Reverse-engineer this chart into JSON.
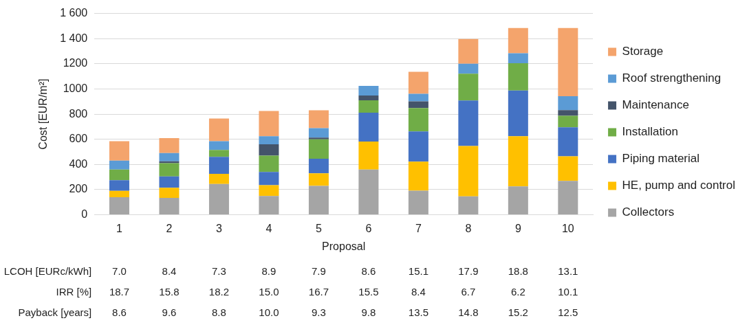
{
  "chart_data": {
    "type": "bar",
    "stacked": true,
    "xlabel": "Proposal",
    "ylabel": "Cost [EUR/m²]",
    "categories": [
      "1",
      "2",
      "3",
      "4",
      "5",
      "6",
      "7",
      "8",
      "9",
      "10"
    ],
    "series": [
      {
        "name": "Collectors",
        "color": "#a5a5a5",
        "values": [
          140,
          135,
          245,
          150,
          230,
          360,
          192,
          146,
          226,
          270
        ]
      },
      {
        "name": "HE, pump and control",
        "color": "#ffc000",
        "values": [
          50,
          80,
          80,
          85,
          100,
          222,
          230,
          400,
          398,
          195
        ]
      },
      {
        "name": "Piping material",
        "color": "#4472c4",
        "values": [
          85,
          90,
          135,
          105,
          115,
          230,
          240,
          363,
          364,
          230
        ]
      },
      {
        "name": "Installation",
        "color": "#70ad47",
        "values": [
          85,
          105,
          55,
          130,
          155,
          98,
          187,
          213,
          216,
          92
        ]
      },
      {
        "name": "Maintenance",
        "color": "#44546a",
        "values": [
          0,
          15,
          0,
          90,
          13,
          38,
          53,
          0,
          0,
          45
        ]
      },
      {
        "name": "Roof strengthening",
        "color": "#5b9bd5",
        "values": [
          70,
          65,
          70,
          65,
          75,
          77,
          59,
          79,
          80,
          111
        ]
      },
      {
        "name": "Storage",
        "color": "#f4a46c",
        "values": [
          155,
          120,
          180,
          200,
          142,
          0,
          175,
          196,
          200,
          541
        ]
      }
    ],
    "ylim": [
      0,
      1600
    ],
    "yticks": [
      0,
      200,
      400,
      600,
      800,
      1000,
      1200,
      {
        "value": 1400,
        "label": "1 400"
      },
      {
        "value": 1600,
        "label": "1 600"
      }
    ],
    "grid": "y",
    "legend": "right",
    "annotations": [
      "LCOH [EURc/kWh]",
      "7.0",
      "8.4",
      "7.3",
      "8.9",
      "7.9",
      "8.6",
      "15.1",
      "17.9",
      "18.8",
      "13.1",
      "IRR [%]",
      "18.7",
      "15.8",
      "18.2",
      "15.0",
      "16.7",
      "15.5",
      "8.4",
      "6.7",
      "6.2",
      "10.1",
      "Payback [years]",
      "8.6",
      "9.6",
      "8.8",
      "10.0",
      "9.3",
      "9.8",
      "13.5",
      "14.8",
      "15.2",
      "12.5"
    ]
  }
}
